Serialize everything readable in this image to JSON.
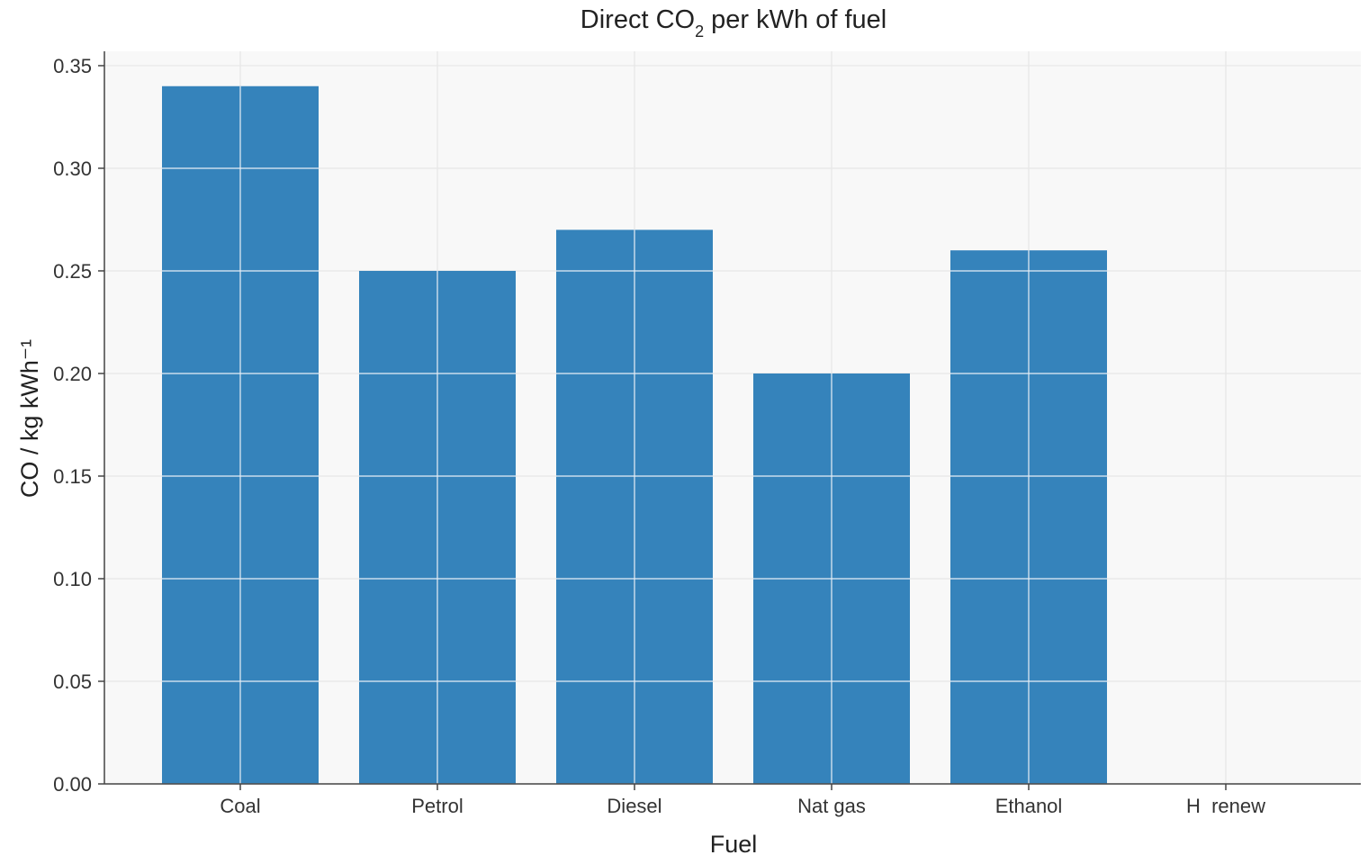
{
  "chart_data": {
    "type": "bar",
    "title": {
      "prefix": "Direct CO",
      "subscript": "2",
      "suffix": " per kWh of fuel"
    },
    "xlabel": "Fuel",
    "ylabel": {
      "prefix": "CO",
      "suffix": " / kg kWh⁻¹"
    },
    "categories": [
      "Coal",
      "Petrol",
      "Diesel",
      "Nat gas",
      "Ethanol",
      "H  renew"
    ],
    "values": [
      0.34,
      0.25,
      0.27,
      0.2,
      0.26,
      0.0
    ],
    "ylim": [
      0,
      0.357
    ],
    "yticks": [
      "0.00",
      "0.05",
      "0.10",
      "0.15",
      "0.20",
      "0.25",
      "0.30",
      "0.35"
    ],
    "grid": true,
    "colors": {
      "bar": "#3583bb",
      "plot_background": "#f8f8f8",
      "grid": "#e6e6e6",
      "bar_grid": "#e8eef5",
      "axis": "#444444"
    }
  }
}
